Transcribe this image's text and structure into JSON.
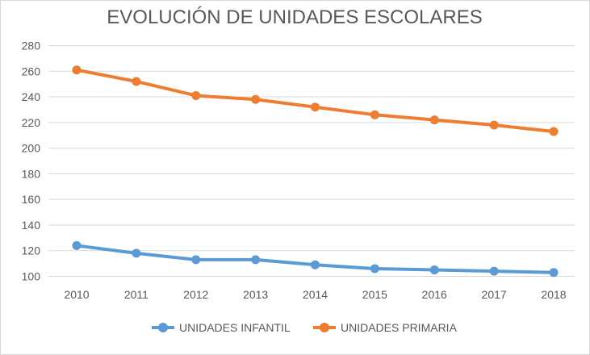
{
  "chart_data": {
    "type": "line",
    "title": "EVOLUCIÓN DE UNIDADES ESCOLARES",
    "xlabel": "",
    "ylabel": "",
    "categories": [
      "2010",
      "2011",
      "2012",
      "2013",
      "2014",
      "2015",
      "2016",
      "2017",
      "2018"
    ],
    "ylim": [
      100,
      280
    ],
    "yticks": [
      100,
      120,
      140,
      160,
      180,
      200,
      220,
      240,
      260,
      280
    ],
    "grid": true,
    "legend_position": "bottom",
    "series": [
      {
        "name": "UNIDADES INFANTIL",
        "color": "#5b9bd5",
        "values": [
          124,
          118,
          113,
          113,
          109,
          106,
          105,
          104,
          103
        ]
      },
      {
        "name": "UNIDADES PRIMARIA",
        "color": "#ed7d31",
        "values": [
          261,
          252,
          241,
          238,
          232,
          226,
          222,
          218,
          213
        ]
      }
    ]
  }
}
